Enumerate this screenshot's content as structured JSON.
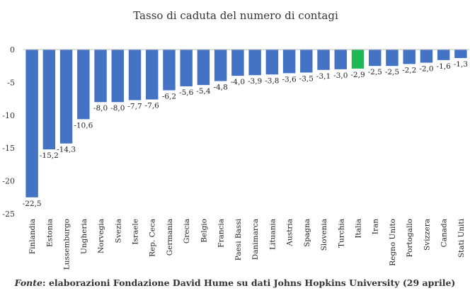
{
  "chart_data": {
    "type": "bar",
    "title": "Tasso di caduta del numero di contagi",
    "categories": [
      "Finlandia",
      "Estonia",
      "Lussemburgo",
      "Ungheria",
      "Norvegia",
      "Svezia",
      "Israele",
      "Rep. Ceca",
      "Germania",
      "Grecia",
      "Belgio",
      "Francia",
      "Paesi Bassi",
      "Danimarca",
      "Lituania",
      "Austria",
      "Spagna",
      "Slovenia",
      "Turchia",
      "Italia",
      "Iran",
      "Regno Unito",
      "Portogallo",
      "Svizzera",
      "Canada",
      "Stati Uniti"
    ],
    "values": [
      -22.5,
      -15.2,
      -14.3,
      -10.6,
      -8.0,
      -8.0,
      -7.7,
      -7.6,
      -6.2,
      -5.6,
      -5.4,
      -4.8,
      -4.0,
      -3.9,
      -3.8,
      -3.6,
      -3.5,
      -3.1,
      -3.0,
      -2.9,
      -2.5,
      -2.5,
      -2.2,
      -2.0,
      -1.6,
      -1.3
    ],
    "data_labels": [
      "-22,5",
      "-15,2",
      "-14,3",
      "-10,6",
      "-8,0",
      "-8,0",
      "-7,7",
      "-7,6",
      "-6,2",
      "-5,6",
      "-5,4",
      "-4,8",
      "-4,0",
      "-3,9",
      "-3,8",
      "-3,6",
      "-3,5",
      "-3,1",
      "-3,0",
      "-2,9",
      "-2,5",
      "-2,5",
      "-2,2",
      "-2,0",
      "-1,6",
      "-1,3"
    ],
    "ylim": [
      -25,
      0
    ],
    "yticks": [
      0,
      -5,
      -10,
      -15,
      -20,
      -25
    ],
    "ytick_labels": [
      "0",
      "-5",
      "-10",
      "-15",
      "-20",
      "-25"
    ],
    "grid": false,
    "colors": {
      "default": "#4472C4",
      "highlight": "#1DB954",
      "highlight_category": "Italia"
    }
  },
  "source": {
    "label": "Fonte",
    "text": ": elaborazioni Fondazione David Hume su dati Johns Hopkins University (29 aprile)"
  }
}
